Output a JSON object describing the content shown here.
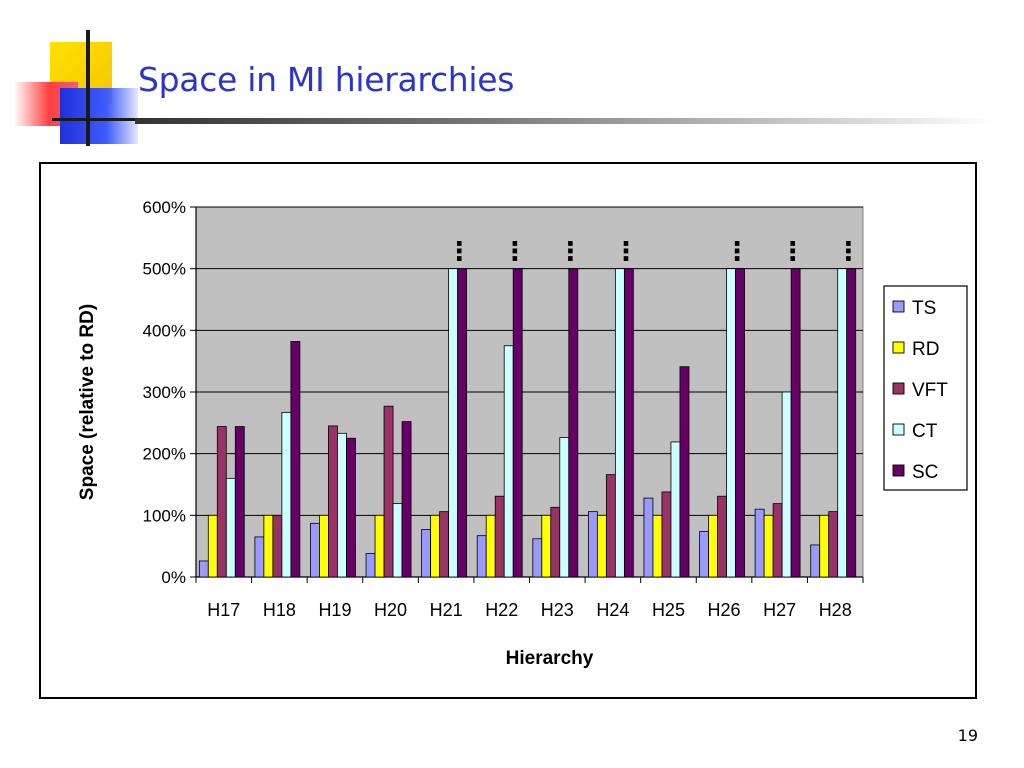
{
  "slide": {
    "title": "Space in MI hierarchies",
    "page_number": "19"
  },
  "colors": {
    "title": "#2b35c9",
    "plot_background": "#c0c0c0"
  },
  "chart_data": {
    "type": "bar",
    "title": "",
    "xlabel": "Hierarchy",
    "ylabel": "Space (relative to RD)",
    "ylim": [
      0,
      600
    ],
    "y_ticks": [
      "0%",
      "100%",
      "200%",
      "300%",
      "400%",
      "500%",
      "600%"
    ],
    "y_tick_values": [
      0,
      100,
      200,
      300,
      400,
      500,
      600
    ],
    "categories": [
      "H17",
      "H18",
      "H19",
      "H20",
      "H21",
      "H22",
      "H23",
      "H24",
      "H25",
      "H26",
      "H27",
      "H28"
    ],
    "clipped_marker": "⋮",
    "series": [
      {
        "name": "TS",
        "color": "#9999ff",
        "values": [
          26,
          65,
          87,
          38,
          77,
          67,
          62,
          106,
          128,
          74,
          110,
          52
        ]
      },
      {
        "name": "RD",
        "color": "#ffff00",
        "values": [
          100,
          100,
          100,
          100,
          100,
          100,
          100,
          100,
          100,
          100,
          100,
          100
        ]
      },
      {
        "name": "VFT",
        "color": "#993366",
        "values": [
          244,
          100,
          245,
          277,
          106,
          131,
          113,
          166,
          138,
          131,
          119,
          106
        ]
      },
      {
        "name": "CT",
        "color": "#ccffff",
        "values": [
          160,
          267,
          233,
          119,
          500,
          375,
          226,
          500,
          219,
          500,
          300,
          500
        ]
      },
      {
        "name": "SC",
        "color": "#660066",
        "values": [
          244,
          382,
          225,
          252,
          500,
          500,
          500,
          500,
          341,
          500,
          500,
          500
        ]
      }
    ],
    "clipped_categories": [
      "H21",
      "H22",
      "H23",
      "H24",
      "H26",
      "H27",
      "H28"
    ],
    "grid": "horizontal",
    "legend_position": "right"
  }
}
